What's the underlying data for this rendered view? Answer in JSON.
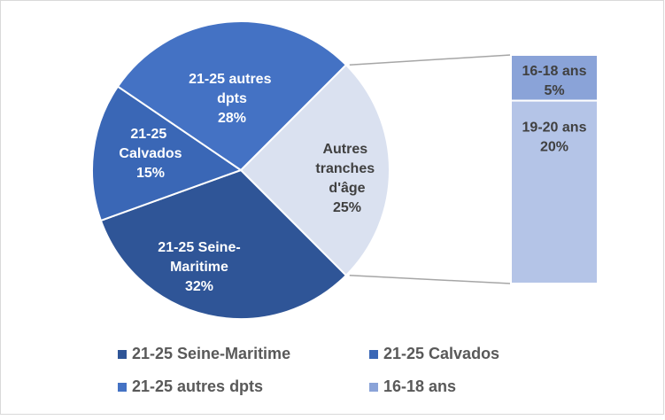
{
  "chart_data": {
    "type": "pie-of-bar",
    "pie": [
      {
        "name": "Autres tranches d'âge",
        "value": 25,
        "value_label": "25%",
        "color": "#dae1f0",
        "in_legend": false
      },
      {
        "name": "21-25 Seine-Maritime",
        "value": 32,
        "value_label": "32%",
        "color": "#2f5597",
        "in_legend": true
      },
      {
        "name": "21-25 Calvados",
        "value": 15,
        "value_label": "15%",
        "color": "#3a67b6",
        "in_legend": true
      },
      {
        "name": "21-25 autres dpts",
        "value": 28,
        "value_label": "28%",
        "color": "#4472c4",
        "in_legend": true
      }
    ],
    "bar": [
      {
        "name": "16-18 ans",
        "value": 5,
        "value_label": "5%",
        "color": "#8aa3d8",
        "in_legend": true
      },
      {
        "name": "19-20 ans",
        "value": 20,
        "value_label": "20%",
        "color": "#b4c4e7",
        "in_legend": false
      }
    ]
  }
}
